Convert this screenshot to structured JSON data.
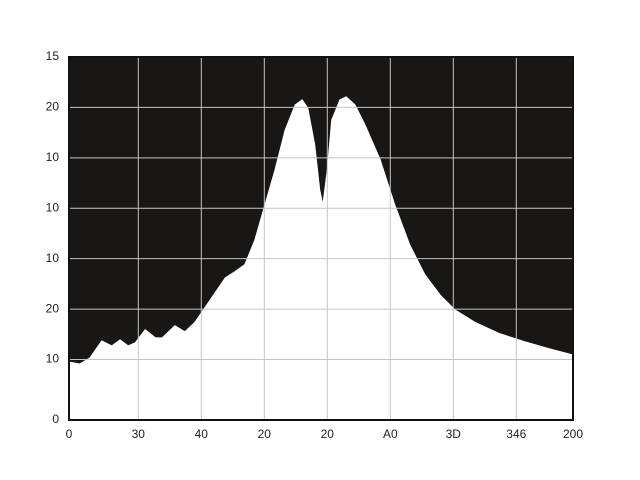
{
  "chart_data": {
    "type": "area",
    "x": [
      0,
      0.17,
      0.33,
      0.52,
      0.68,
      0.81,
      0.94,
      1.05,
      1.21,
      1.37,
      1.48,
      1.68,
      1.84,
      2.0,
      2.24,
      2.48,
      2.63,
      2.79,
      2.95,
      3.11,
      3.27,
      3.43,
      3.59,
      3.7,
      3.79,
      3.9,
      3.98,
      4.03,
      4.1,
      4.17,
      4.3,
      4.4,
      4.54,
      4.7,
      4.94,
      5.17,
      5.41,
      5.65,
      5.89,
      6.13,
      6.44,
      6.84,
      7.24,
      7.63,
      8
    ],
    "values": [
      1.15,
      1.11,
      1.23,
      1.57,
      1.47,
      1.59,
      1.47,
      1.53,
      1.79,
      1.63,
      1.63,
      1.87,
      1.75,
      1.94,
      2.38,
      2.82,
      2.94,
      3.08,
      3.57,
      4.27,
      4.96,
      5.75,
      6.25,
      6.35,
      6.19,
      5.46,
      4.56,
      4.27,
      4.96,
      5.95,
      6.35,
      6.41,
      6.25,
      5.85,
      5.16,
      4.27,
      3.47,
      2.88,
      2.48,
      2.18,
      1.94,
      1.71,
      1.55,
      1.41,
      1.29
    ],
    "color": "#ffffff",
    "background": "#1a1614",
    "grid": true,
    "grid_color": "#c4c4c4",
    "xlim": [
      0,
      8
    ],
    "xticks": [
      0,
      {
        "value": 1.1,
        "label": "30"
      },
      {
        "value": 2.1,
        "label": "40"
      },
      {
        "value": 3.1,
        "label": "20"
      },
      {
        "value": 4.1,
        "label": "20"
      },
      {
        "value": 5.1,
        "label": "A0"
      },
      {
        "value": 6.1,
        "label": "3D"
      },
      {
        "value": 7.1,
        "label": "346"
      },
      {
        "value": 8,
        "label": "200"
      }
    ],
    "ylim": [
      0,
      7.2
    ],
    "yticks": [
      0,
      {
        "value": 1.2,
        "label": "10"
      },
      {
        "value": 2.2,
        "label": "20"
      },
      {
        "value": 3.2,
        "label": "10"
      },
      {
        "value": 4.2,
        "label": "10"
      },
      {
        "value": 5.2,
        "label": "10"
      },
      {
        "value": 6.2,
        "label": "20"
      },
      {
        "value": 7.2,
        "label": "15"
      }
    ]
  }
}
